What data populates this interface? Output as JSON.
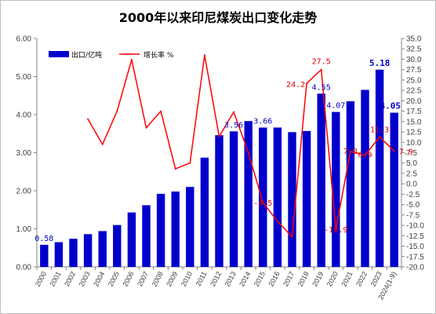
{
  "chart_data": {
    "type": "bar+line",
    "title": "2000年以来印尼煤炭出口变化走势",
    "categories": [
      "2000",
      "2001",
      "2002",
      "2003",
      "2004",
      "2005",
      "2006",
      "2007",
      "2008",
      "2009",
      "2010",
      "2011",
      "2012",
      "2013",
      "2014",
      "2015",
      "2016",
      "2017",
      "2018",
      "2019",
      "2020",
      "2021",
      "2022",
      "2023",
      "2024(1-9)"
    ],
    "series": [
      {
        "name": "出口/亿吨",
        "type": "bar",
        "axis": "left",
        "color": "#0000cc",
        "values": [
          0.58,
          0.65,
          0.74,
          0.86,
          0.94,
          1.1,
          1.43,
          1.62,
          1.92,
          1.98,
          2.1,
          2.87,
          3.46,
          3.56,
          3.83,
          3.66,
          3.66,
          3.54,
          3.57,
          4.55,
          4.07,
          4.35,
          4.65,
          5.18,
          4.05
        ]
      },
      {
        "name": "增长率 %",
        "type": "line",
        "axis": "right",
        "color": "#ff0000",
        "values": [
          null,
          null,
          null,
          15.6,
          9.5,
          17.5,
          29.9,
          13.5,
          17.5,
          3.6,
          5.0,
          31.0,
          11.4,
          17.3,
          7.5,
          -4.5,
          -9.0,
          -12.8,
          24.2,
          27.5,
          -10.9,
          7.8,
          6.9,
          11.3,
          7.9
        ]
      }
    ],
    "bar_labels": [
      {
        "index": 0,
        "text": "0.58",
        "bold": false
      },
      {
        "index": 13,
        "text": "3.56",
        "bold": false
      },
      {
        "index": 15,
        "text": "3.66",
        "bold": false
      },
      {
        "index": 19,
        "text": "4.55",
        "bold": false
      },
      {
        "index": 20,
        "text": "4.07",
        "bold": false
      },
      {
        "index": 23,
        "text": "5.18",
        "bold": true
      },
      {
        "index": 24,
        "text": "4.05",
        "bold": true
      }
    ],
    "line_labels": [
      {
        "index": 15,
        "text": "-4.5"
      },
      {
        "index": 18,
        "text": "24.2"
      },
      {
        "index": 19,
        "text": "27.5"
      },
      {
        "index": 20,
        "text": "-10.9"
      },
      {
        "index": 21,
        "text": "7.8"
      },
      {
        "index": 22,
        "text": "6.9"
      },
      {
        "index": 23,
        "text": "11.3"
      },
      {
        "index": 24,
        "text": "7.9"
      }
    ],
    "left_axis": {
      "min": 0,
      "max": 6,
      "step": 1,
      "tick_labels": [
        "0.00",
        "1.00",
        "2.00",
        "3.00",
        "4.00",
        "5.00",
        "6.00"
      ]
    },
    "right_axis": {
      "min": -20,
      "max": 35,
      "step": 2.5,
      "tick_labels": [
        "-20.0",
        "-17.5",
        "-15.0",
        "-12.5",
        "-10.0",
        "-7.5",
        "-5.0",
        "-2.5",
        "0.0",
        "2.5",
        "5.0",
        "7.5",
        "10.0",
        "12.5",
        "15.0",
        "17.5",
        "20.0",
        "22.5",
        "25.0",
        "27.5",
        "30.0",
        "32.5",
        "35.0"
      ]
    },
    "legend_position": "top-left",
    "grid": false
  }
}
